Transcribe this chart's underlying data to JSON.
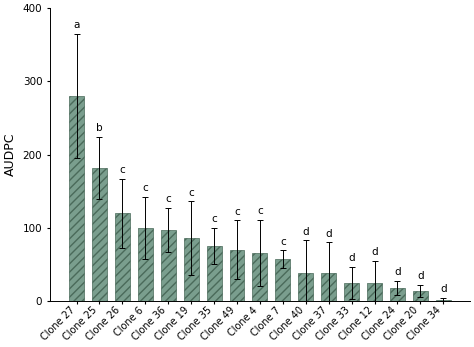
{
  "categories": [
    "Clone 27",
    "Clone 25",
    "Clone 26",
    "Clone 6",
    "Clone 36",
    "Clone 19",
    "Clone 35",
    "Clone 49",
    "Clone 4",
    "Clone 7",
    "Clone 40",
    "Clone 37",
    "Clone 33",
    "Clone 12",
    "Clone 24",
    "Clone 20",
    "Clone 34"
  ],
  "values": [
    280,
    182,
    120,
    100,
    97,
    86,
    75,
    70,
    66,
    57,
    38,
    38,
    25,
    25,
    18,
    14,
    2
  ],
  "errors": [
    85,
    42,
    47,
    42,
    30,
    50,
    25,
    40,
    45,
    12,
    45,
    42,
    22,
    30,
    10,
    8,
    2
  ],
  "letters": [
    "a",
    "b",
    "c",
    "c",
    "c",
    "c",
    "c",
    "c",
    "c",
    "c",
    "d",
    "d",
    "d",
    "d",
    "d",
    "d",
    "d"
  ],
  "ylabel": "AUDPC",
  "ylim": [
    0,
    400
  ],
  "yticks": [
    0,
    100,
    200,
    300,
    400
  ],
  "bar_color": "#7a9e8e",
  "hatch": "////",
  "edge_color": "#4a6a5a",
  "background_color": "#ffffff",
  "letter_fontsize": 7.5,
  "ylabel_fontsize": 9,
  "tick_fontsize": 7,
  "bar_width": 0.65
}
